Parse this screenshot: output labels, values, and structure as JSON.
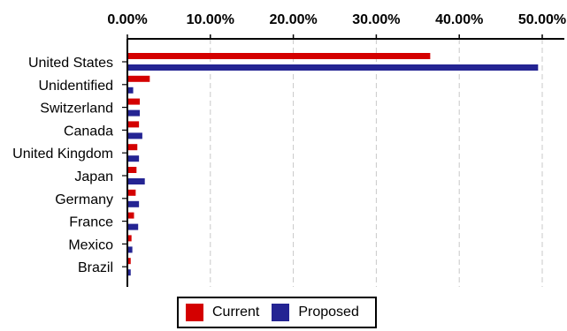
{
  "chart_data": {
    "type": "bar",
    "orientation": "horizontal",
    "categories": [
      "United States",
      "Unidentified",
      "Switzerland",
      "Canada",
      "United Kingdom",
      "Japan",
      "Germany",
      "France",
      "Mexico",
      "Brazil"
    ],
    "series": [
      {
        "name": "Current",
        "color": "#d40000",
        "values": [
          36.5,
          2.7,
          1.5,
          1.4,
          1.2,
          1.1,
          1.0,
          0.8,
          0.5,
          0.4
        ]
      },
      {
        "name": "Proposed",
        "color": "#242493",
        "values": [
          49.5,
          0.7,
          1.5,
          1.8,
          1.4,
          2.1,
          1.4,
          1.3,
          0.6,
          0.4
        ]
      }
    ],
    "xlim": [
      0,
      50
    ],
    "xticks": [
      "0.00%",
      "10.00%",
      "20.00%",
      "30.00%",
      "40.00%",
      "50.00%"
    ],
    "grid": true,
    "legend_position": "bottom"
  }
}
